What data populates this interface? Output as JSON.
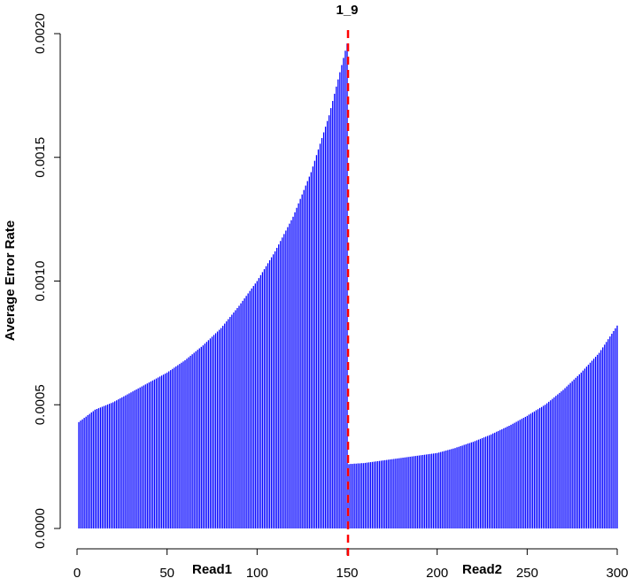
{
  "chart_data": {
    "type": "bar",
    "title": "1_9",
    "ylabel": "Average Error Rate",
    "region_labels": [
      "Read1",
      "Read2"
    ],
    "color": "#0000ff",
    "divider": {
      "x": 150.5,
      "color": "#ff0000"
    },
    "xlim": [
      0,
      300
    ],
    "xticks": [
      0,
      50,
      100,
      150,
      200,
      250,
      300
    ],
    "ylim": [
      0,
      0.002
    ],
    "yticks": [
      {
        "value": 0,
        "label": "0.0000"
      },
      {
        "value": 0.0005,
        "label": "0.0005"
      },
      {
        "value": 0.001,
        "label": "0.0010"
      },
      {
        "value": 0.0015,
        "label": "0.0015"
      },
      {
        "value": 0.002,
        "label": "0.0020"
      }
    ],
    "x": [
      1,
      2,
      3,
      4,
      5,
      6,
      7,
      8,
      9,
      10,
      11,
      12,
      13,
      14,
      15,
      16,
      17,
      18,
      19,
      20,
      21,
      22,
      23,
      24,
      25,
      26,
      27,
      28,
      29,
      30,
      31,
      32,
      33,
      34,
      35,
      36,
      37,
      38,
      39,
      40,
      41,
      42,
      43,
      44,
      45,
      46,
      47,
      48,
      49,
      50,
      51,
      52,
      53,
      54,
      55,
      56,
      57,
      58,
      59,
      60,
      61,
      62,
      63,
      64,
      65,
      66,
      67,
      68,
      69,
      70,
      71,
      72,
      73,
      74,
      75,
      76,
      77,
      78,
      79,
      80,
      81,
      82,
      83,
      84,
      85,
      86,
      87,
      88,
      89,
      90,
      91,
      92,
      93,
      94,
      95,
      96,
      97,
      98,
      99,
      100,
      101,
      102,
      103,
      104,
      105,
      106,
      107,
      108,
      109,
      110,
      111,
      112,
      113,
      114,
      115,
      116,
      117,
      118,
      119,
      120,
      121,
      122,
      123,
      124,
      125,
      126,
      127,
      128,
      129,
      130,
      131,
      132,
      133,
      134,
      135,
      136,
      137,
      138,
      139,
      140,
      141,
      142,
      143,
      144,
      145,
      146,
      147,
      148,
      149,
      150,
      151,
      152,
      153,
      154,
      155,
      156,
      157,
      158,
      159,
      160,
      161,
      162,
      163,
      164,
      165,
      166,
      167,
      168,
      169,
      170,
      171,
      172,
      173,
      174,
      175,
      176,
      177,
      178,
      179,
      180,
      181,
      182,
      183,
      184,
      185,
      186,
      187,
      188,
      189,
      190,
      191,
      192,
      193,
      194,
      195,
      196,
      197,
      198,
      199,
      200,
      201,
      202,
      203,
      204,
      205,
      206,
      207,
      208,
      209,
      210,
      211,
      212,
      213,
      214,
      215,
      216,
      217,
      218,
      219,
      220,
      221,
      222,
      223,
      224,
      225,
      226,
      227,
      228,
      229,
      230,
      231,
      232,
      233,
      234,
      235,
      236,
      237,
      238,
      239,
      240,
      241,
      242,
      243,
      244,
      245,
      246,
      247,
      248,
      249,
      250,
      251,
      252,
      253,
      254,
      255,
      256,
      257,
      258,
      259,
      260,
      261,
      262,
      263,
      264,
      265,
      266,
      267,
      268,
      269,
      270,
      271,
      272,
      273,
      274,
      275,
      276,
      277,
      278,
      279,
      280,
      281,
      282,
      283,
      284,
      285,
      286,
      287,
      288,
      289,
      290,
      291,
      292,
      293,
      294,
      295,
      296,
      297,
      298,
      299,
      300
    ],
    "values": [
      0.00043,
      0.000436,
      0.000441,
      0.000447,
      0.000452,
      0.000458,
      0.000463,
      0.000469,
      0.000474,
      0.00048,
      0.000483,
      0.000486,
      0.000489,
      0.000492,
      0.000495,
      0.000498,
      0.000501,
      0.000504,
      0.000507,
      0.00051,
      0.000514,
      0.000518,
      0.000522,
      0.000526,
      0.00053,
      0.000534,
      0.000538,
      0.000542,
      0.000546,
      0.00055,
      0.000554,
      0.000558,
      0.000562,
      0.000566,
      0.00057,
      0.000574,
      0.000578,
      0.000582,
      0.000586,
      0.00059,
      0.000594,
      0.000598,
      0.000602,
      0.000606,
      0.00061,
      0.000614,
      0.000618,
      0.000622,
      0.000626,
      0.00063,
      0.000635,
      0.00064,
      0.000645,
      0.00065,
      0.000655,
      0.00066,
      0.000665,
      0.00067,
      0.000675,
      0.00068,
      0.000686,
      0.000692,
      0.000698,
      0.000704,
      0.00071,
      0.000716,
      0.000722,
      0.000728,
      0.000734,
      0.00074,
      0.000747,
      0.000754,
      0.000761,
      0.000768,
      0.000775,
      0.000782,
      0.000789,
      0.000796,
      0.000803,
      0.00081,
      0.000819,
      0.000828,
      0.000837,
      0.000846,
      0.000855,
      0.000864,
      0.000873,
      0.000882,
      0.000891,
      0.0009,
      0.00091,
      0.00092,
      0.00093,
      0.00094,
      0.00095,
      0.00096,
      0.00097,
      0.00098,
      0.00099,
      0.001,
      0.001012,
      0.001024,
      0.001036,
      0.001048,
      0.00106,
      0.001072,
      0.001084,
      0.001096,
      0.001108,
      0.00112,
      0.001134,
      0.001148,
      0.001162,
      0.001176,
      0.00119,
      0.001204,
      0.001218,
      0.001232,
      0.001246,
      0.00126,
      0.001278,
      0.001296,
      0.001314,
      0.001332,
      0.00135,
      0.001368,
      0.001386,
      0.001404,
      0.001422,
      0.00144,
      0.001463,
      0.001486,
      0.001509,
      0.001532,
      0.001555,
      0.001578,
      0.001601,
      0.001624,
      0.001647,
      0.00167,
      0.001699,
      0.001728,
      0.001757,
      0.001786,
      0.001815,
      0.001844,
      0.001873,
      0.001902,
      0.001931,
      0.00196,
      0.00026,
      0.000261,
      0.000261,
      0.000262,
      0.000262,
      0.000263,
      0.000263,
      0.000264,
      0.000264,
      0.000265,
      0.000266,
      0.000267,
      0.000268,
      0.000269,
      0.00027,
      0.000271,
      0.000272,
      0.000273,
      0.000274,
      0.000275,
      0.000276,
      0.000277,
      0.000278,
      0.000279,
      0.00028,
      0.000281,
      0.000282,
      0.000283,
      0.000284,
      0.000285,
      0.000286,
      0.000287,
      0.000288,
      0.000289,
      0.00029,
      0.000291,
      0.000292,
      0.000293,
      0.000294,
      0.000295,
      0.000296,
      0.000297,
      0.000298,
      0.000299,
      0.0003,
      0.000301,
      0.000302,
      0.000303,
      0.000304,
      0.000305,
      0.000307,
      0.000309,
      0.000311,
      0.000313,
      0.000315,
      0.000317,
      0.000319,
      0.000321,
      0.000323,
      0.000325,
      0.000328,
      0.00033,
      0.000333,
      0.000335,
      0.000338,
      0.00034,
      0.000343,
      0.000345,
      0.000348,
      0.00035,
      0.000353,
      0.000356,
      0.000359,
      0.000362,
      0.000365,
      0.000368,
      0.000371,
      0.000374,
      0.000377,
      0.00038,
      0.000384,
      0.000387,
      0.000391,
      0.000394,
      0.000398,
      0.000401,
      0.000405,
      0.000408,
      0.000412,
      0.000415,
      0.000419,
      0.000423,
      0.000427,
      0.000431,
      0.000435,
      0.000439,
      0.000443,
      0.000447,
      0.000451,
      0.000455,
      0.00046,
      0.000464,
      0.000469,
      0.000473,
      0.000478,
      0.000482,
      0.000487,
      0.000491,
      0.000496,
      0.0005,
      0.000506,
      0.000512,
      0.000518,
      0.000524,
      0.00053,
      0.000536,
      0.000542,
      0.000548,
      0.000554,
      0.00056,
      0.000567,
      0.000574,
      0.000581,
      0.000588,
      0.000595,
      0.000602,
      0.000609,
      0.000616,
      0.000623,
      0.00063,
      0.000638,
      0.000646,
      0.000654,
      0.000662,
      0.00067,
      0.000678,
      0.000686,
      0.000694,
      0.000702,
      0.00071,
      0.000721,
      0.000732,
      0.000743,
      0.000754,
      0.000765,
      0.000776,
      0.000787,
      0.000798,
      0.000809,
      0.00082
    ]
  }
}
